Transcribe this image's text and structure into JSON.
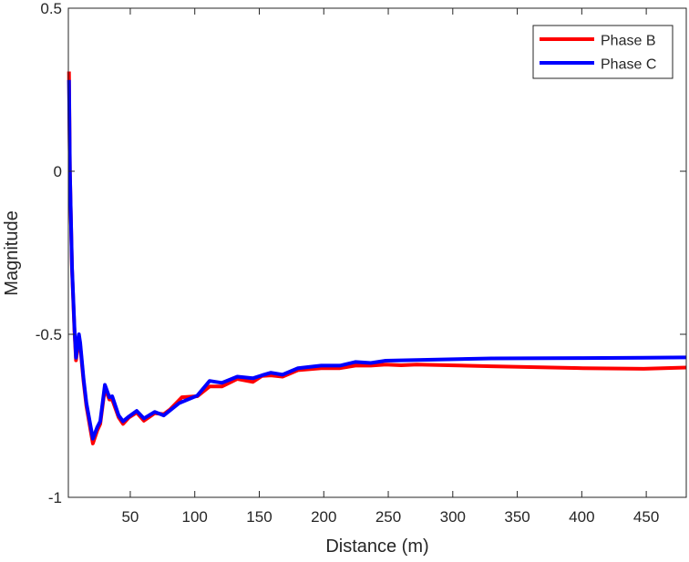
{
  "chart_data": {
    "type": "line",
    "title": "",
    "xlabel": "Distance (m)",
    "ylabel": "Magnitude",
    "xlim": [
      2,
      481
    ],
    "ylim": [
      -1,
      0.5
    ],
    "xticks": [
      50,
      100,
      150,
      200,
      250,
      300,
      350,
      400,
      450
    ],
    "yticks": [
      0.5,
      0,
      -0.5,
      -1
    ],
    "ytick_labels": [
      "0.5",
      "0",
      "-0.5",
      "-1"
    ],
    "grid": false,
    "legend_position": "top-right",
    "series": [
      {
        "name": "Phase B",
        "color": "#ff0000",
        "x": [
          2.5,
          3.2,
          4.8,
          6.7,
          7.9,
          10.2,
          11.2,
          13.8,
          16,
          21,
          24.4,
          26.7,
          30.3,
          33.8,
          36,
          41,
          44.4,
          49,
          55,
          60.6,
          69,
          76,
          81,
          90,
          102,
          111.5,
          121,
          133,
          145,
          152,
          159,
          168,
          180,
          198,
          212.5,
          224.5,
          236.5,
          248,
          260,
          272,
          330,
          401,
          448,
          481
        ],
        "y": [
          0.306,
          0.0,
          -0.3,
          -0.49,
          -0.58,
          -0.51,
          -0.535,
          -0.645,
          -0.72,
          -0.835,
          -0.795,
          -0.775,
          -0.665,
          -0.7,
          -0.7,
          -0.755,
          -0.775,
          -0.755,
          -0.74,
          -0.765,
          -0.742,
          -0.745,
          -0.73,
          -0.693,
          -0.69,
          -0.66,
          -0.66,
          -0.637,
          -0.646,
          -0.628,
          -0.626,
          -0.63,
          -0.61,
          -0.604,
          -0.604,
          -0.596,
          -0.596,
          -0.593,
          -0.595,
          -0.593,
          -0.598,
          -0.604,
          -0.606,
          -0.602
        ]
      },
      {
        "name": "Phase C",
        "color": "#0000ff",
        "x": [
          2.5,
          3.2,
          4.8,
          6.7,
          7.9,
          10.2,
          11.2,
          13.8,
          16,
          21,
          24.4,
          26.7,
          30.3,
          33.8,
          36,
          41,
          44.4,
          49,
          55,
          60.6,
          69,
          76,
          88,
          102,
          111.5,
          121,
          133,
          145,
          152,
          159,
          168,
          180,
          198,
          212.5,
          224.5,
          236.5,
          248,
          260,
          272,
          330,
          401,
          448,
          481
        ],
        "y": [
          0.28,
          0.0,
          -0.293,
          -0.48,
          -0.572,
          -0.5,
          -0.526,
          -0.637,
          -0.711,
          -0.82,
          -0.785,
          -0.767,
          -0.655,
          -0.693,
          -0.69,
          -0.749,
          -0.767,
          -0.752,
          -0.735,
          -0.758,
          -0.738,
          -0.749,
          -0.711,
          -0.688,
          -0.643,
          -0.649,
          -0.63,
          -0.635,
          -0.626,
          -0.618,
          -0.624,
          -0.604,
          -0.596,
          -0.596,
          -0.585,
          -0.588,
          -0.581,
          -0.58,
          -0.579,
          -0.574,
          -0.573,
          -0.572,
          -0.571
        ]
      }
    ]
  }
}
